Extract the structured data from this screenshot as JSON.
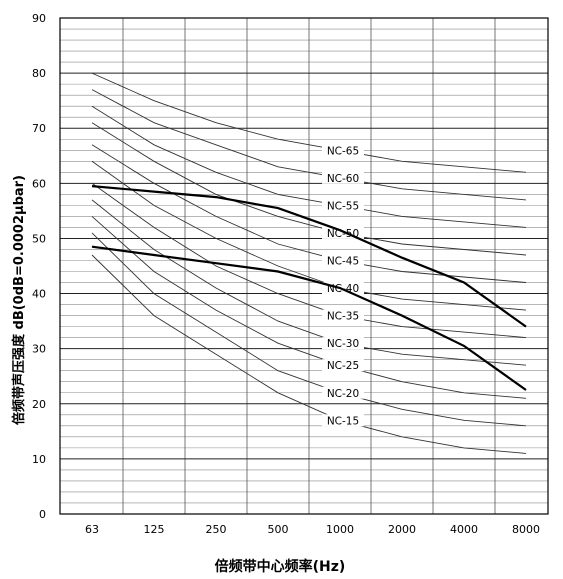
{
  "chart_data": {
    "type": "line",
    "xlabel": "倍频带中心频率(Hz)",
    "ylabel": "倍频带声压强度 dB(0dB=0.0002μbar)",
    "categories": [
      "63",
      "125",
      "250",
      "500",
      "1000",
      "2000",
      "4000",
      "8000"
    ],
    "ylim": [
      0,
      90
    ],
    "yticks": [
      0,
      10,
      20,
      30,
      40,
      50,
      60,
      70,
      80,
      90
    ],
    "grid": true,
    "nc_curves": [
      {
        "name": "NC-15",
        "values": [
          47,
          36,
          29,
          22,
          17,
          14,
          12,
          11
        ]
      },
      {
        "name": "NC-20",
        "values": [
          51,
          40,
          33,
          26,
          22,
          19,
          17,
          16
        ]
      },
      {
        "name": "NC-25",
        "values": [
          54,
          44,
          37,
          31,
          27,
          24,
          22,
          21
        ]
      },
      {
        "name": "NC-30",
        "values": [
          57,
          48,
          41,
          35,
          31,
          29,
          28,
          27
        ]
      },
      {
        "name": "NC-35",
        "values": [
          60,
          52,
          45,
          40,
          36,
          34,
          33,
          32
        ]
      },
      {
        "name": "NC-40",
        "values": [
          64,
          56,
          50,
          45,
          41,
          39,
          38,
          37
        ]
      },
      {
        "name": "NC-45",
        "values": [
          67,
          60,
          54,
          49,
          46,
          44,
          43,
          42
        ]
      },
      {
        "name": "NC-50",
        "values": [
          71,
          64,
          58,
          54,
          51,
          49,
          48,
          47
        ]
      },
      {
        "name": "NC-55",
        "values": [
          74,
          67,
          62,
          58,
          56,
          54,
          53,
          52
        ]
      },
      {
        "name": "NC-60",
        "values": [
          77,
          71,
          67,
          63,
          61,
          59,
          58,
          57
        ]
      },
      {
        "name": "NC-65",
        "values": [
          80,
          75,
          71,
          68,
          66,
          64,
          63,
          62
        ]
      }
    ],
    "measured": [
      {
        "values": [
          59.5,
          58.5,
          57.5,
          55.5,
          51.5,
          46.5,
          42,
          34
        ]
      },
      {
        "values": [
          48.5,
          47,
          45.5,
          44,
          41,
          36,
          30.5,
          22.5
        ]
      }
    ]
  }
}
